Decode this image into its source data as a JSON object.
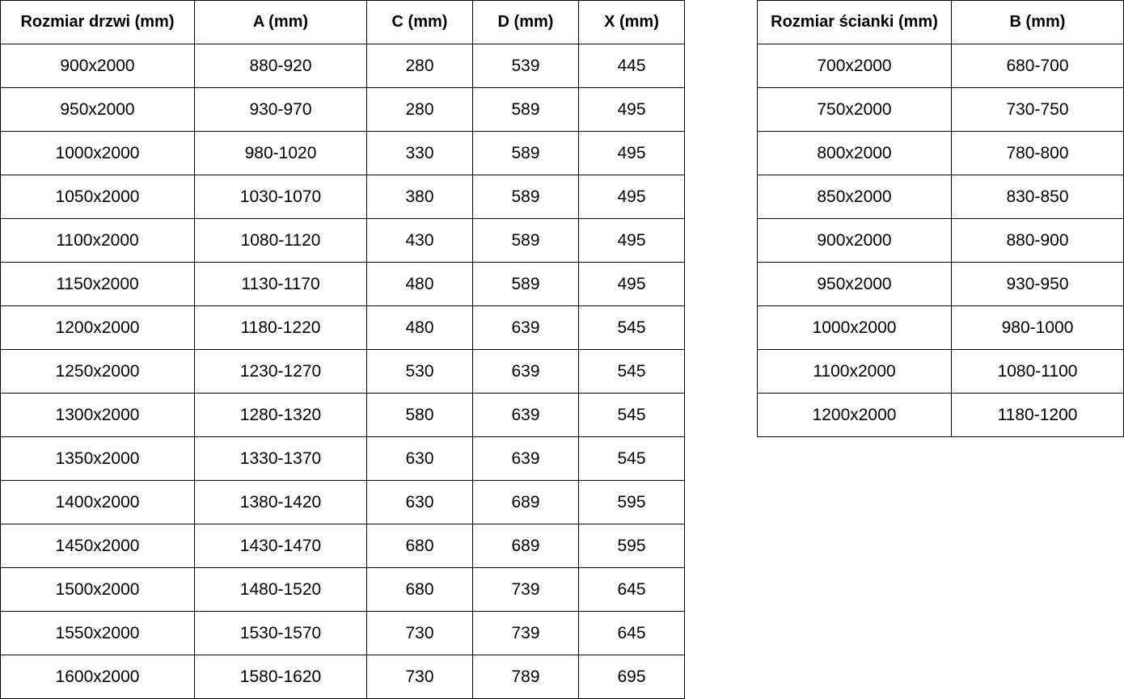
{
  "doors_table": {
    "headers": [
      "Rozmiar drzwi (mm)",
      "A (mm)",
      "C (mm)",
      "D (mm)",
      "X (mm)"
    ],
    "rows": [
      [
        "900x2000",
        "880-920",
        "280",
        "539",
        "445"
      ],
      [
        "950x2000",
        "930-970",
        "280",
        "589",
        "495"
      ],
      [
        "1000x2000",
        "980-1020",
        "330",
        "589",
        "495"
      ],
      [
        "1050x2000",
        "1030-1070",
        "380",
        "589",
        "495"
      ],
      [
        "1100x2000",
        "1080-1120",
        "430",
        "589",
        "495"
      ],
      [
        "1150x2000",
        "1130-1170",
        "480",
        "589",
        "495"
      ],
      [
        "1200x2000",
        "1180-1220",
        "480",
        "639",
        "545"
      ],
      [
        "1250x2000",
        "1230-1270",
        "530",
        "639",
        "545"
      ],
      [
        "1300x2000",
        "1280-1320",
        "580",
        "639",
        "545"
      ],
      [
        "1350x2000",
        "1330-1370",
        "630",
        "639",
        "545"
      ],
      [
        "1400x2000",
        "1380-1420",
        "630",
        "689",
        "595"
      ],
      [
        "1450x2000",
        "1430-1470",
        "680",
        "689",
        "595"
      ],
      [
        "1500x2000",
        "1480-1520",
        "680",
        "739",
        "645"
      ],
      [
        "1550x2000",
        "1530-1570",
        "730",
        "739",
        "645"
      ],
      [
        "1600x2000",
        "1580-1620",
        "730",
        "789",
        "695"
      ]
    ]
  },
  "panel_table": {
    "headers": [
      "Rozmiar ścianki (mm)",
      "B (mm)"
    ],
    "rows": [
      [
        "700x2000",
        "680-700"
      ],
      [
        "750x2000",
        "730-750"
      ],
      [
        "800x2000",
        "780-800"
      ],
      [
        "850x2000",
        "830-850"
      ],
      [
        "900x2000",
        "880-900"
      ],
      [
        "950x2000",
        "930-950"
      ],
      [
        "1000x2000",
        "980-1000"
      ],
      [
        "1100x2000",
        "1080-1100"
      ],
      [
        "1200x2000",
        "1180-1200"
      ]
    ]
  }
}
